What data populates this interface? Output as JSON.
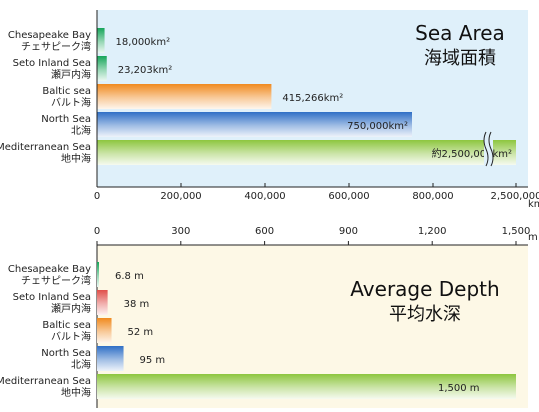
{
  "chart_data": [
    {
      "type": "bar",
      "orientation": "horizontal",
      "title": "Sea Area",
      "title_jp": "海域面積",
      "categories": [
        {
          "en": "Chesapeake Bay",
          "jp": "チェサピーク湾"
        },
        {
          "en": "Seto Inland Sea",
          "jp": "瀬戸内海"
        },
        {
          "en": "Baltic sea",
          "jp": "バルト海"
        },
        {
          "en": "North Sea",
          "jp": "北海"
        },
        {
          "en": "Mediterranean Sea",
          "jp": "地中海"
        }
      ],
      "values": [
        18000,
        23203,
        415266,
        750000,
        2500000
      ],
      "value_labels": [
        "18,000km²",
        "23,203km²",
        "415,266km²",
        "750,000km²",
        "約2,500,000km²"
      ],
      "axis_break": true,
      "xlim": [
        0,
        2500000
      ],
      "x_ticks": [
        "0",
        "200,000",
        "400,000",
        "600,000",
        "800,000",
        "2,500,000"
      ],
      "x_unit": "km",
      "colors": [
        "#16a55a",
        "#16a55a",
        "#f08a1f",
        "#2f6fc6",
        "#8dc63f"
      ],
      "background": "#dff0fa"
    },
    {
      "type": "bar",
      "orientation": "horizontal",
      "title": "Average Depth",
      "title_jp": "平均水深",
      "categories": [
        {
          "en": "Chesapeake Bay",
          "jp": "チェサピーク湾"
        },
        {
          "en": "Seto Inland Sea",
          "jp": "瀬戸内海"
        },
        {
          "en": "Baltic sea",
          "jp": "バルト海"
        },
        {
          "en": "North Sea",
          "jp": "北海"
        },
        {
          "en": "Mediterranean Sea",
          "jp": "地中海"
        }
      ],
      "values": [
        6.8,
        38,
        52,
        95,
        1500
      ],
      "value_labels": [
        "6.8 m",
        "38 m",
        "52 m",
        "95 m",
        "1,500 m"
      ],
      "xlim": [
        0,
        1500
      ],
      "x_ticks": [
        "0",
        "300",
        "600",
        "900",
        "1,200",
        "1,500"
      ],
      "x_unit": "m",
      "colors": [
        "#16a55a",
        "#e0504a",
        "#f08a1f",
        "#2f6fc6",
        "#8dc63f"
      ],
      "background": "#fdf8e6"
    }
  ]
}
